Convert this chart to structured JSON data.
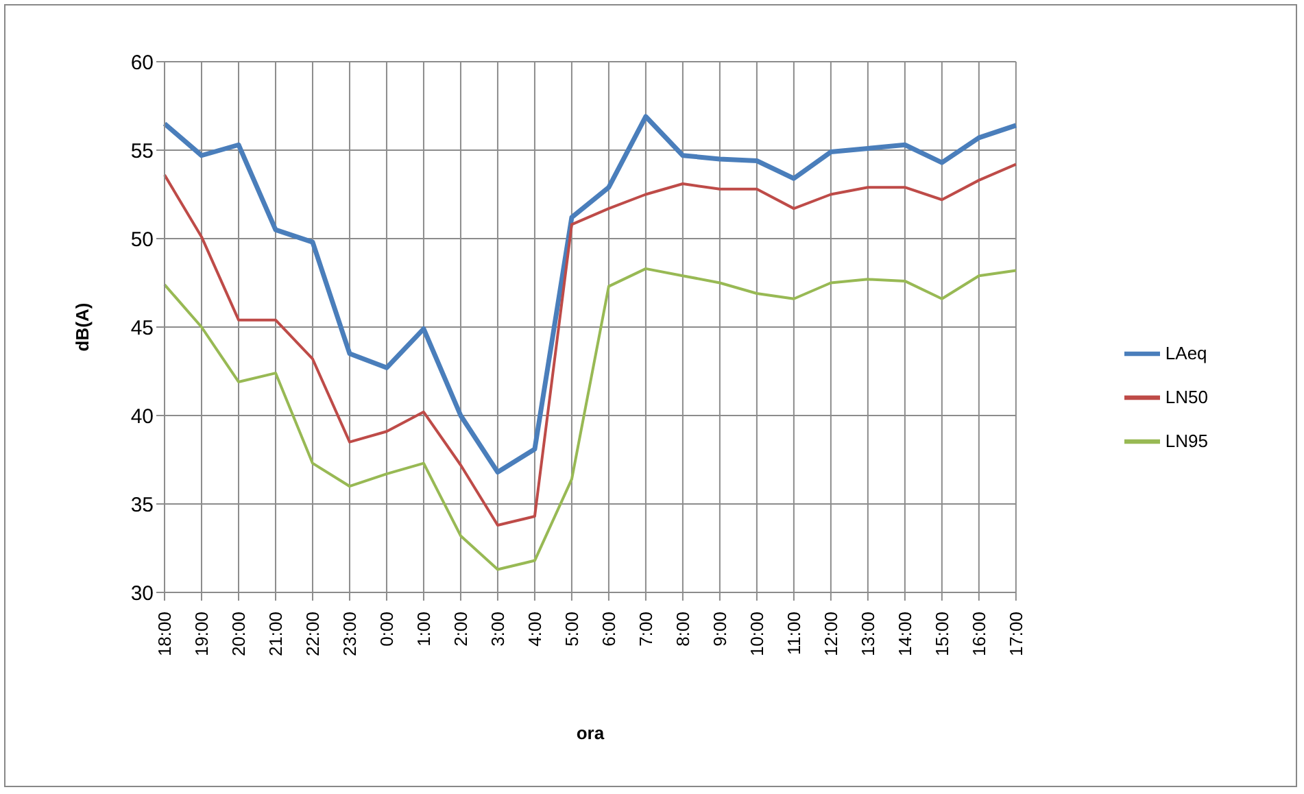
{
  "chart_data": {
    "type": "line",
    "xlabel": "ora",
    "ylabel": "dB(A)",
    "categories": [
      "18:00",
      "19:00",
      "20:00",
      "21:00",
      "22:00",
      "23:00",
      "0:00",
      "1:00",
      "2:00",
      "3:00",
      "4:00",
      "5:00",
      "6:00",
      "7:00",
      "8:00",
      "9:00",
      "10:00",
      "11:00",
      "12:00",
      "13:00",
      "14:00",
      "15:00",
      "16:00",
      "17:00"
    ],
    "series": [
      {
        "name": "LAeq",
        "color": "#4a7ebb",
        "values": [
          56.5,
          54.7,
          55.3,
          50.5,
          49.8,
          43.5,
          42.7,
          44.9,
          40,
          36.8,
          38.1,
          51.2,
          52.9,
          56.9,
          54.7,
          54.5,
          54.4,
          53.4,
          54.9,
          55.1,
          55.3,
          54.3,
          55.7,
          56.4
        ]
      },
      {
        "name": "LN50",
        "color": "#be4b48",
        "values": [
          53.6,
          50.1,
          45.4,
          45.4,
          43.2,
          38.5,
          39.1,
          40.2,
          37.2,
          33.8,
          34.3,
          50.8,
          51.7,
          52.5,
          53.1,
          52.8,
          52.8,
          51.7,
          52.5,
          52.9,
          52.9,
          52.2,
          53.3,
          54.2
        ]
      },
      {
        "name": "LN95",
        "color": "#98b954",
        "values": [
          47.4,
          45,
          41.9,
          42.4,
          37.3,
          36,
          36.7,
          37.3,
          33.2,
          31.3,
          31.8,
          36.4,
          47.3,
          48.3,
          47.9,
          47.5,
          46.9,
          46.6,
          47.5,
          47.7,
          47.6,
          46.6,
          47.9,
          48.2
        ]
      }
    ],
    "ylim": [
      30,
      60
    ],
    "yticks": [
      30,
      35,
      40,
      45,
      50,
      55,
      60
    ],
    "grid": true,
    "legend": "right",
    "marker": "none",
    "line_style": "solid"
  }
}
